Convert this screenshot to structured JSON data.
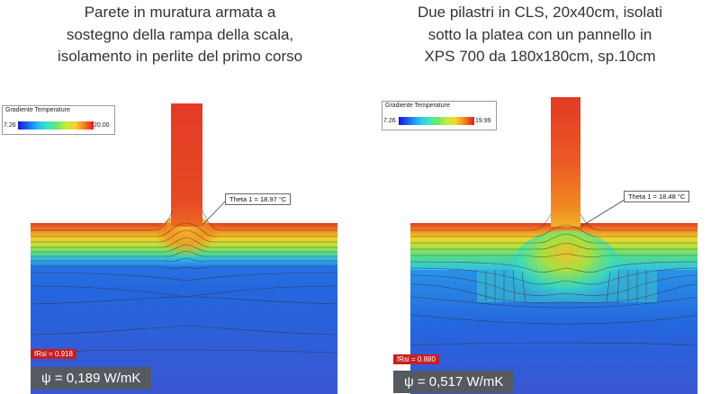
{
  "left": {
    "caption": [
      "Parete in muratura armata a",
      "sostegno della rampa della scala,",
      "isolamento in perlite del primo corso"
    ],
    "legend": {
      "title": "Gradiente Temperature",
      "min": "7.26",
      "max": "20.00"
    },
    "theta": "Theta 1 = 18.97 °C",
    "frsi": "fRsi = 0.918",
    "psi": "ψ = 0,189 W/mK"
  },
  "right": {
    "caption": [
      "Due pilastri in CLS, 20x40cm, isolati",
      "sotto la platea con un pannello in",
      "XPS 700 da 180x180cm, sp.10cm"
    ],
    "legend": {
      "title": "Gradiente Temperature",
      "min": "7.26",
      "max": "19.99"
    },
    "theta": "Theta 1 = 18.48 °C",
    "frsi": "fRsi = 0.880",
    "psi": "ψ = 0,517 W/mK"
  },
  "colors": {
    "cold": "#1f4fd8",
    "warm": "#e03a22",
    "badge_red": "#c81e1e",
    "psi_bg": "#555a60"
  }
}
